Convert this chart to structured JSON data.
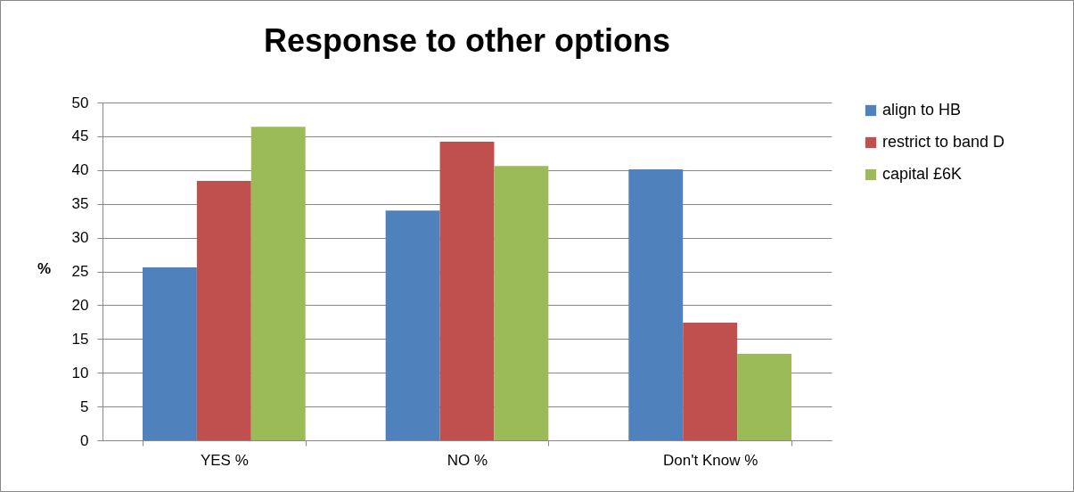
{
  "chart_data": {
    "type": "bar",
    "title": "Response to other options",
    "ylabel": "%",
    "categories": [
      "YES %",
      "NO %",
      "Don't Know %"
    ],
    "series": [
      {
        "name": "align to HB",
        "color": "#4f81bd",
        "values": [
          25.6,
          34.0,
          40.1
        ]
      },
      {
        "name": "restrict to band D",
        "color": "#c0504d",
        "values": [
          38.4,
          44.2,
          17.4
        ]
      },
      {
        "name": "capital £6K",
        "color": "#9bbb59",
        "values": [
          46.4,
          40.6,
          12.8
        ]
      }
    ],
    "ylim": [
      0,
      50
    ],
    "yticks": [
      0,
      5,
      10,
      15,
      20,
      25,
      30,
      35,
      40,
      45,
      50
    ],
    "grid": "y",
    "legend": "right"
  }
}
